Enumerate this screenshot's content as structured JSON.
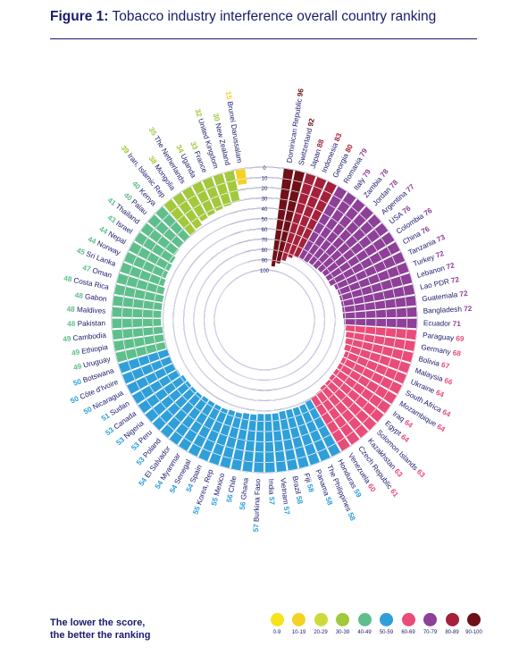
{
  "title": {
    "bold": "Figure 1:",
    "rest": " Tobacco industry interference overall country ranking"
  },
  "note": {
    "line1": "The lower the score,",
    "line2": "the better the ranking"
  },
  "legend": [
    {
      "label": "0-9",
      "color": "#f7e21b"
    },
    {
      "label": "10-19",
      "color": "#f5d124"
    },
    {
      "label": "20-29",
      "color": "#cddb3a"
    },
    {
      "label": "30-39",
      "color": "#a2c83c"
    },
    {
      "label": "40-49",
      "color": "#5fbf8c"
    },
    {
      "label": "50-59",
      "color": "#2f9fd9"
    },
    {
      "label": "60-69",
      "color": "#e94c78"
    },
    {
      "label": "70-79",
      "color": "#8e3f98"
    },
    {
      "label": "80-89",
      "color": "#a5203a"
    },
    {
      "label": "90-100",
      "color": "#6e1018"
    }
  ],
  "chart_data": {
    "type": "radial-bar",
    "title": "Tobacco industry interference overall country ranking",
    "axis_ticks": [
      "0",
      "10",
      "20",
      "30",
      "40",
      "50",
      "60",
      "70",
      "80",
      "90",
      "100"
    ],
    "axis_range": [
      0,
      100
    ],
    "categories": [
      "Dominican Republic",
      "Switzerland",
      "Japan",
      "Indonesia",
      "Georgia",
      "Romania",
      "Italy",
      "Zambia",
      "Jordan",
      "Argentina",
      "USA",
      "Colombia",
      "China",
      "Tanzania",
      "Turkey",
      "Lebanon",
      "Lao PDR",
      "Guatemala",
      "Bangladesh",
      "Ecuador",
      "Paraguay",
      "Germany",
      "Bolivia",
      "Malaysia",
      "Ukraine",
      "South Africa",
      "Mozambique",
      "Iraq",
      "Egypt",
      "Solomon Islands",
      "Kazakhstan",
      "Czech Republic",
      "Venezuela",
      "Honduras",
      "The Philippines",
      "Panama",
      "Fiji",
      "Brazil",
      "Vietnam",
      "India",
      "Burkina Faso",
      "Ghana",
      "Chile",
      "Mexico",
      "Korea, Rep",
      "Spain",
      "Senegal",
      "Myanmar",
      "El Salvador",
      "Poland",
      "Peru",
      "Nigeria",
      "Canada",
      "Sudan",
      "Nicaragua",
      "Côte d'Ivoire",
      "Botswana",
      "Uruguay",
      "Ethiopia",
      "Cambodia",
      "Pakistan",
      "Maldives",
      "Gabon",
      "Costa Rica",
      "Oman",
      "Sri Lanka",
      "Norway",
      "Nepal",
      "Israel",
      "Thailand",
      "Palau",
      "Kenya",
      "Iran, Islamic Rep",
      "Mongolia",
      "The Netherlands",
      "Uganda",
      "France",
      "United Kingdom",
      "New Zealand",
      "Brunei Darussalam"
    ],
    "values": [
      96,
      92,
      88,
      83,
      80,
      79,
      79,
      78,
      78,
      77,
      76,
      76,
      76,
      73,
      72,
      72,
      72,
      72,
      72,
      71,
      69,
      68,
      67,
      66,
      64,
      64,
      64,
      64,
      64,
      63,
      63,
      61,
      60,
      59,
      58,
      58,
      58,
      58,
      57,
      57,
      57,
      56,
      56,
      55,
      55,
      54,
      54,
      54,
      54,
      53,
      53,
      53,
      53,
      51,
      50,
      50,
      50,
      49,
      49,
      49,
      48,
      48,
      48,
      48,
      47,
      45,
      44,
      44,
      43,
      41,
      40,
      40,
      39,
      38,
      35,
      34,
      33,
      32,
      30,
      15
    ]
  }
}
